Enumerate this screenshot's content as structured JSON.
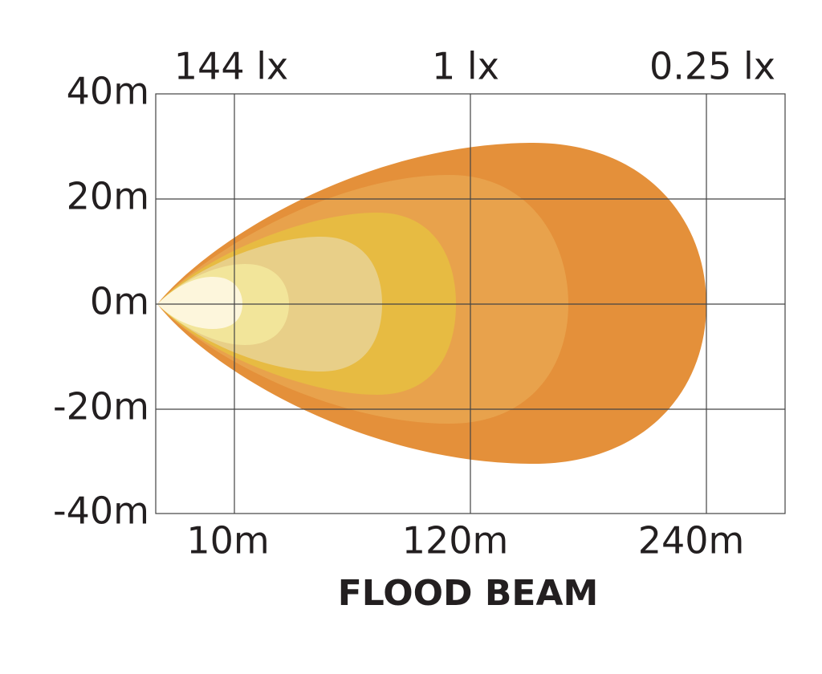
{
  "title": "FLOOD BEAM",
  "top_labels": [
    "144 lx",
    "1 lx",
    "0.25 lx"
  ],
  "y_labels": [
    "40m",
    "20m",
    "0m",
    "-20m",
    "-40m"
  ],
  "x_labels": [
    "10m",
    "120m",
    "240m"
  ]
}
